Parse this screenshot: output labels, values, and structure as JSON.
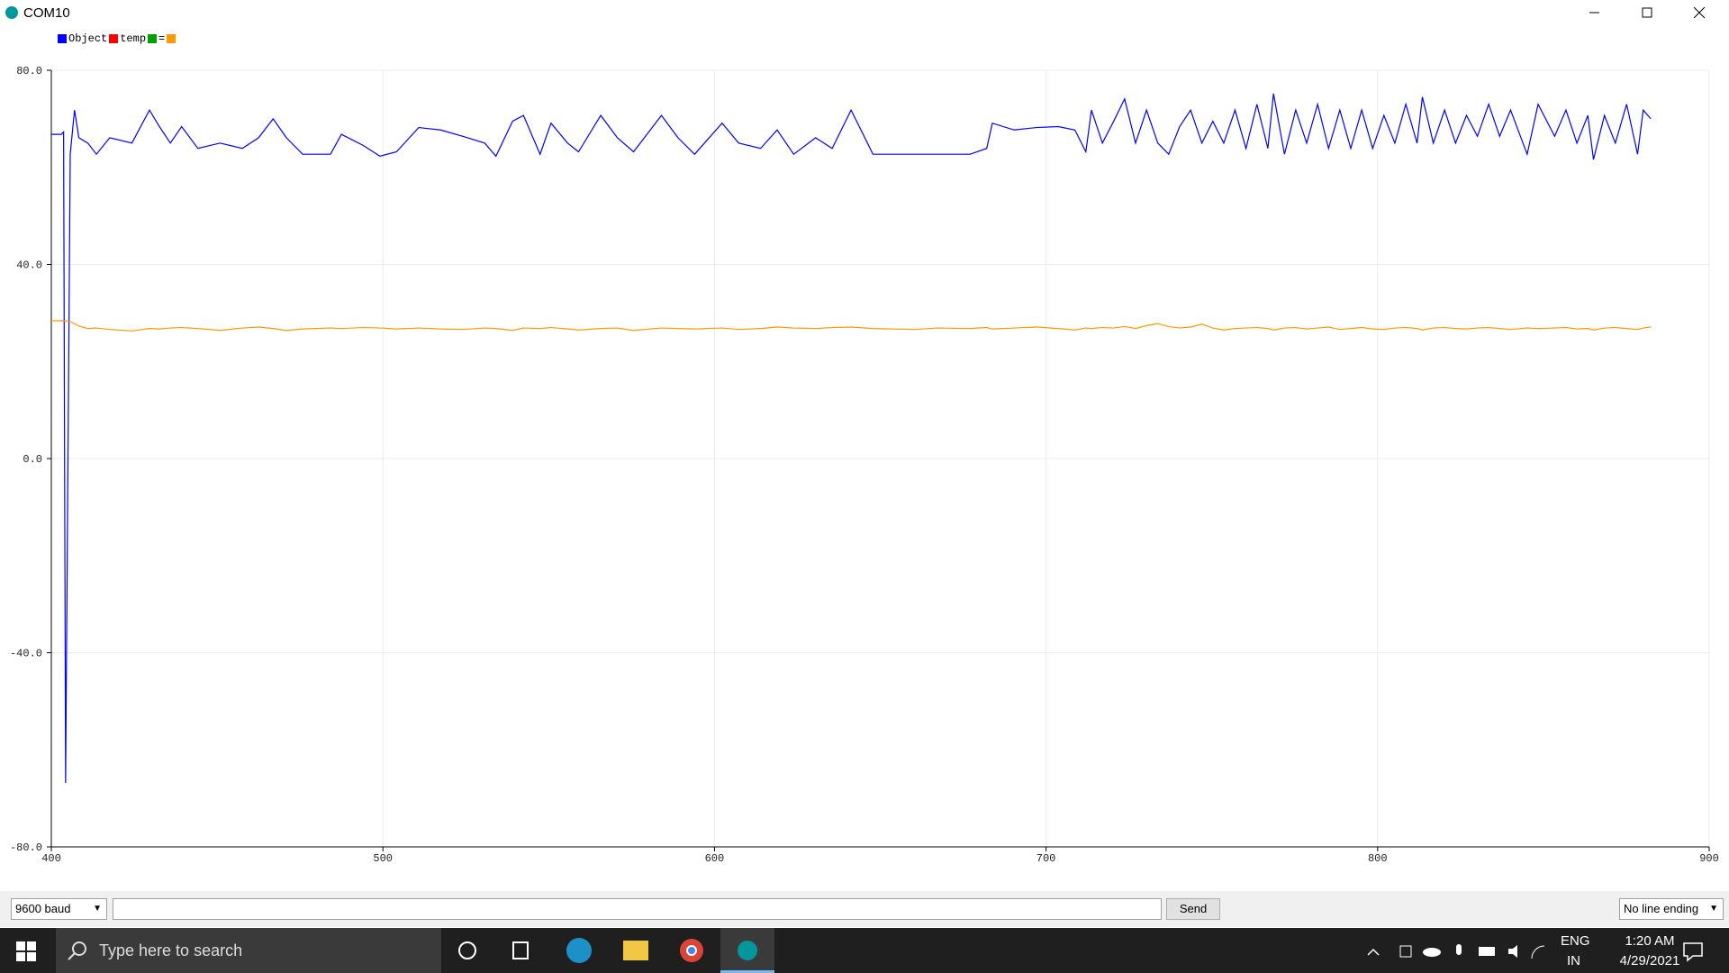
{
  "window": {
    "title": "COM10"
  },
  "chart_data": {
    "type": "line",
    "series": [
      {
        "name": "Object",
        "color": "#0000ff",
        "values": [
          66.8,
          66.8,
          67.3,
          -66.8,
          62.7,
          71.8,
          66.1,
          65,
          62.7,
          66.1,
          65,
          71.8,
          68.4,
          65,
          68.4,
          63.9,
          65,
          63.9,
          66.1,
          70,
          66.1,
          62.7,
          62.7,
          66.8,
          64.5,
          62.3,
          63.2,
          68.2,
          67.7,
          66.4,
          65,
          62.3,
          69.5,
          70.7,
          62.7,
          69.1,
          65,
          63.2,
          70.7,
          66.1,
          63.2,
          70.7,
          66.1,
          62.7,
          69.1,
          65,
          63.9,
          67.7,
          62.7,
          66.1,
          63.9,
          71.8,
          62.7,
          62.7,
          62.7,
          62.7,
          63.9,
          69.1,
          67.7,
          68.2,
          68.4,
          67.7,
          63.2,
          71.8,
          65,
          69.5,
          74.1,
          65,
          71.8,
          65,
          62.7,
          68.4,
          71.8,
          65,
          69.5,
          65,
          71.8,
          63.9,
          73,
          63.9,
          75.2,
          62.7,
          71.8,
          65,
          73,
          63.9,
          71.8,
          63.9,
          71.8,
          63.9,
          70.7,
          65,
          73,
          65,
          74.5,
          65,
          71.8,
          65,
          70.7,
          66.4,
          73,
          66.4,
          71.8,
          62.7,
          73,
          66.4,
          71.8,
          65,
          70.7,
          61.6,
          70.7,
          65,
          73,
          62.7,
          71.8,
          70
        ]
      },
      {
        "name": "temp",
        "color": "#ff0000"
      },
      {
        "name": "=",
        "color": "#00a000"
      },
      {
        "color": "#ff9900",
        "values": [
          28.4,
          28.4,
          28.4,
          28.4,
          28.2,
          27.8,
          27.3,
          26.8,
          26.9,
          26.6,
          26.3,
          26.8,
          26.7,
          26.9,
          27,
          26.8,
          26.4,
          26.9,
          27.1,
          26.8,
          26.4,
          26.7,
          26.9,
          26.8,
          27,
          26.9,
          26.7,
          26.9,
          26.7,
          26.6,
          26.9,
          26.8,
          26.4,
          26.9,
          26.8,
          27,
          26.7,
          26.5,
          26.8,
          26.9,
          26.4,
          26.9,
          26.8,
          26.7,
          26.9,
          26.6,
          26.8,
          27.1,
          26.9,
          26.8,
          27,
          27.1,
          26.8,
          26.6,
          26.9,
          26.8,
          27,
          26.7,
          26.9,
          27.1,
          26.8,
          26.5,
          26.9,
          26.8,
          27,
          26.9,
          27.2,
          26.8,
          27.4,
          27.8,
          27.2,
          26.9,
          27.1,
          27.7,
          26.9,
          26.5,
          26.8,
          26.9,
          27,
          26.8,
          26.5,
          26.9,
          27,
          26.7,
          26.9,
          27.1,
          26.6,
          26.8,
          27,
          26.7,
          26.6,
          26.9,
          27,
          26.8,
          26.5,
          26.9,
          27,
          26.8,
          26.7,
          26.9,
          27,
          26.8,
          26.6,
          26.9,
          26.8,
          26.9,
          27,
          26.7,
          26.8,
          26.5,
          26.9,
          27,
          26.8,
          26.6,
          26.9,
          27.1
        ]
      }
    ],
    "x": [
      400,
      403,
      403.7,
      404.3,
      405.7,
      407,
      408.3,
      411,
      413.6,
      417.6,
      424.3,
      429.6,
      432.6,
      435.9,
      439.3,
      444.2,
      450.9,
      457.6,
      462.5,
      466.9,
      470.9,
      475.8,
      484.2,
      487.5,
      494.1,
      499.1,
      504.1,
      510.8,
      517.4,
      524.1,
      530.7,
      534.1,
      539.1,
      542.4,
      547.4,
      550.7,
      555.7,
      559,
      565.7,
      570.7,
      575.6,
      584,
      589,
      594,
      602.3,
      607.3,
      613.9,
      618.9,
      623.9,
      630.5,
      635.5,
      641.2,
      647.8,
      660.5,
      667.1,
      677.1,
      682.1,
      683.8,
      690.4,
      697.1,
      703.7,
      708.7,
      712,
      713.7,
      717,
      720.4,
      723.7,
      727,
      730.3,
      733.7,
      737,
      740.3,
      743.6,
      747,
      750.3,
      753.6,
      757,
      760.3,
      763.6,
      766.9,
      768.6,
      771.9,
      775.3,
      778.6,
      781.9,
      785.2,
      788.6,
      791.9,
      795.2,
      798.5,
      801.9,
      805.2,
      808.5,
      811.9,
      813.5,
      816.8,
      820.2,
      823.5,
      826.8,
      830.1,
      833.5,
      836.8,
      840.1,
      845.1,
      848.4,
      853.4,
      856.8,
      860.1,
      863.4,
      865.1,
      868.4,
      871.7,
      875.1,
      878.4,
      880.1,
      882.4
    ],
    "xlim": [
      400,
      900
    ],
    "xticks": [
      400,
      500,
      600,
      700,
      800,
      900
    ],
    "ylim": [
      -80,
      80
    ],
    "yticks": [
      {
        "value": 80,
        "label": "80.0"
      },
      {
        "value": 40,
        "label": "40.0"
      },
      {
        "value": 0,
        "label": "0.0"
      },
      {
        "value": -40,
        "label": "-40.0"
      },
      {
        "value": -80,
        "label": "-80.0"
      }
    ],
    "grid": true
  },
  "controls": {
    "baud": "9600 baud",
    "send": "Send",
    "line_ending": "No line ending"
  },
  "taskbar": {
    "search": "Type here to search",
    "lang": "ENG",
    "region": "IN",
    "time": "1:20 AM",
    "date": "4/29/2021"
  }
}
